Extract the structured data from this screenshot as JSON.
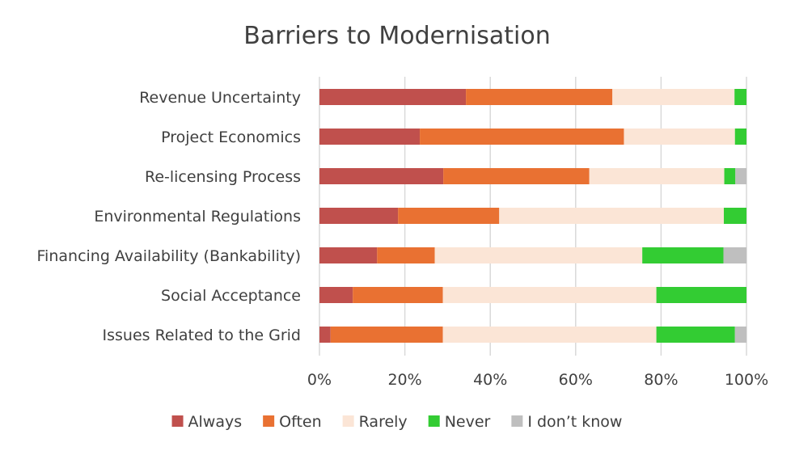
{
  "chart_data": {
    "type": "bar",
    "orientation": "horizontal",
    "stacked": "percent",
    "title": "Barriers to Modernisation",
    "categories": [
      "Revenue Uncertainty",
      "Project Economics",
      "Re-licensing Process",
      "Environmental Regulations",
      "Financing Availability (Bankability)",
      "Social Acceptance",
      "Issues Related to the Grid"
    ],
    "series": [
      {
        "name": "Always",
        "color": "#c0504d",
        "values": [
          34.3,
          23.5,
          29.0,
          18.4,
          13.5,
          7.8,
          2.6
        ]
      },
      {
        "name": "Often",
        "color": "#e97132",
        "values": [
          34.3,
          47.8,
          34.2,
          23.7,
          13.5,
          21.1,
          26.3
        ]
      },
      {
        "name": "Rarely",
        "color": "#fbe5d6",
        "values": [
          28.6,
          26.0,
          31.6,
          52.6,
          48.6,
          50.0,
          50.0
        ]
      },
      {
        "name": "Never",
        "color": "#33cc33",
        "values": [
          2.8,
          2.7,
          2.6,
          5.3,
          19.0,
          21.1,
          18.4
        ]
      },
      {
        "name": "I don’t know",
        "color": "#bfbfbf",
        "values": [
          0,
          0,
          2.6,
          0,
          5.4,
          0,
          2.7
        ]
      }
    ],
    "xlim": [
      0,
      100
    ],
    "xticks": [
      "0%",
      "20%",
      "40%",
      "60%",
      "80%",
      "100%"
    ],
    "grid": true,
    "legend_position": "bottom"
  }
}
